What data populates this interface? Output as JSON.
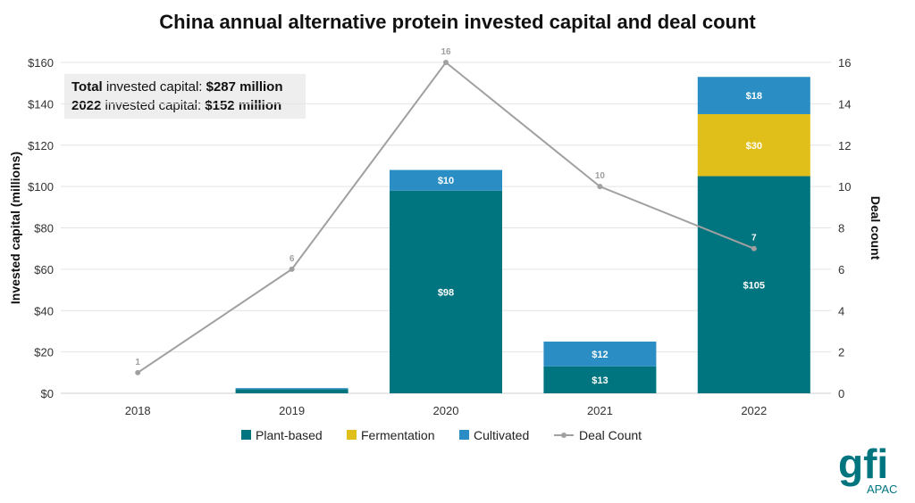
{
  "chart_data": {
    "type": "bar",
    "title": "China annual alternative protein invested capital and deal count",
    "categories": [
      "2018",
      "2019",
      "2020",
      "2021",
      "2022"
    ],
    "ylabel": "Invested capital (millions)",
    "y2label": "Deal count",
    "ylim": [
      0,
      160
    ],
    "y2lim": [
      0,
      16
    ],
    "yticks": [
      "$0",
      "$20",
      "$40",
      "$60",
      "$80",
      "$100",
      "$120",
      "$140",
      "$160"
    ],
    "y2ticks": [
      "0",
      "2",
      "4",
      "6",
      "8",
      "10",
      "12",
      "14",
      "16"
    ],
    "stacked": true,
    "series": [
      {
        "name": "Plant-based",
        "color": "#00747f",
        "values": [
          0,
          2,
          98,
          13,
          105
        ],
        "labels": [
          "",
          "",
          "$98",
          "$13",
          "$105"
        ]
      },
      {
        "name": "Fermentation",
        "color": "#e1bf1b",
        "values": [
          0,
          0,
          0,
          0,
          30
        ],
        "labels": [
          "",
          "",
          "",
          "",
          "$30"
        ]
      },
      {
        "name": "Cultivated",
        "color": "#2a8dc3",
        "values": [
          0,
          0.5,
          10,
          12,
          18
        ],
        "labels": [
          "",
          "",
          "$10",
          "$12",
          "$18"
        ]
      }
    ],
    "line_series": {
      "name": "Deal Count",
      "color": "#a0a0a0",
      "values": [
        1,
        6,
        16,
        10,
        7
      ],
      "labels": [
        "1",
        "6",
        "16",
        "10",
        "7"
      ]
    },
    "legend_position": "bottom",
    "grid": true
  },
  "summary": {
    "line1_bold": "Total",
    "line1_text": " invested capital: ",
    "line1_value": "$287 million",
    "line2_bold": "2022",
    "line2_text": " invested capital: ",
    "line2_value": "$152 million"
  },
  "logo": {
    "text": "gfi",
    "subtext": "APAC",
    "color": "#00747f"
  }
}
